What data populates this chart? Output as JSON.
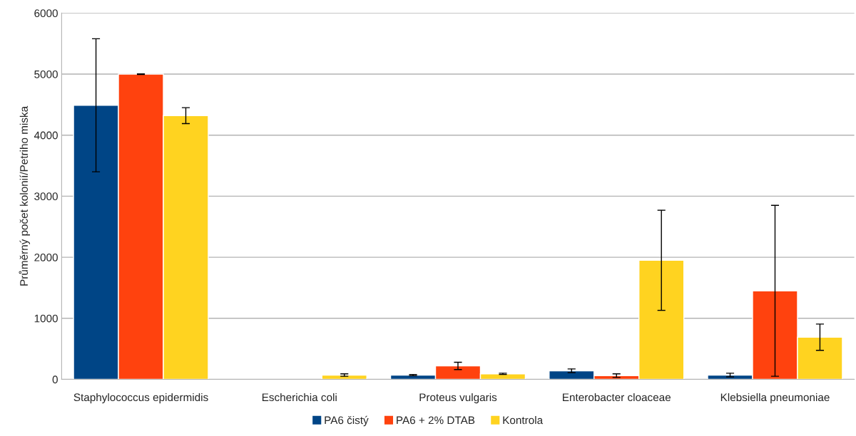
{
  "chart_data": {
    "type": "bar",
    "ylabel": "Průměrný počet kolonií/Petriho miska",
    "categories": [
      "Staphylococcus epidermidis",
      "Escherichia coli",
      "Proteus vulgaris",
      "Enterobacter cloaceae",
      "Klebsiella pneumoniae"
    ],
    "series": [
      {
        "name": "PA6 čistý",
        "color": "#004586",
        "values": [
          4490,
          null,
          70,
          140,
          70
        ],
        "errors": [
          1090,
          null,
          10,
          30,
          30
        ]
      },
      {
        "name": "PA6 + 2% DTAB",
        "color": "#ff420e",
        "values": [
          5000,
          null,
          220,
          60,
          1450
        ],
        "errors": [
          5,
          null,
          60,
          30,
          1400
        ]
      },
      {
        "name": "Kontrola",
        "color": "#ffd320",
        "values": [
          4320,
          70,
          90,
          1950,
          690
        ],
        "errors": [
          130,
          20,
          10,
          820,
          215
        ]
      }
    ],
    "ylim": [
      0,
      6000
    ],
    "yticks": [
      0,
      1000,
      2000,
      3000,
      4000,
      5000,
      6000
    ],
    "grid": "y",
    "legend": "bottom"
  }
}
